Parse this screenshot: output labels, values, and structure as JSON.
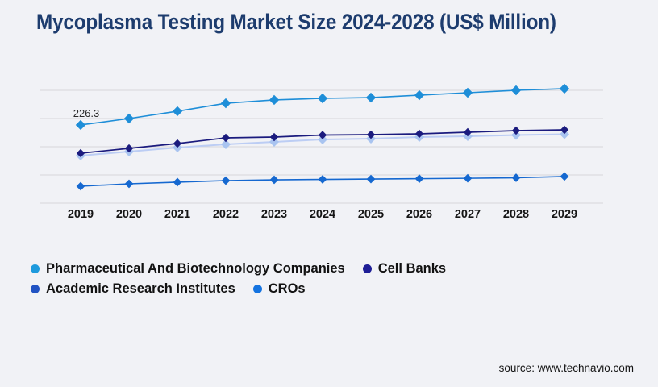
{
  "title": "Mycoplasma Testing Market Size 2024-2028 (US$ Million)",
  "source_text": "source: www.technavio.com",
  "colors": {
    "background": "#f1f2f6",
    "title": "#1d3c6e",
    "gridline": "#d7d7db",
    "axis_label": "#151515",
    "annotation_text": "#2a2a2a"
  },
  "chart_data": {
    "type": "line",
    "title": "Mycoplasma Testing Market Size 2024-2028 (US$ Million)",
    "x": [
      "2019",
      "2020",
      "2021",
      "2022",
      "2023",
      "2024",
      "2025",
      "2026",
      "2027",
      "2028",
      "2029"
    ],
    "series": [
      {
        "name": "Pharmaceutical And Biotechnology Companies",
        "color": "#1e8ed8",
        "legend_color": "#1e9add",
        "values": [
          226.3,
          237.7,
          250.6,
          264.8,
          270.6,
          273.4,
          274.8,
          279.1,
          283.4,
          287.7,
          290.6
        ]
      },
      {
        "name": "Cell Banks",
        "color": "#1b1b7e",
        "legend_color": "#1e1e96",
        "values": [
          176.3,
          184.8,
          193.4,
          203.4,
          204.8,
          208.4,
          209.1,
          210.6,
          213.4,
          216.3,
          217.7
        ]
      },
      {
        "name": "Academic Research Institutes",
        "color": "#bccdf4",
        "marker_color": "#a9c4f0",
        "legend_color": "#2153c3",
        "values": [
          172.0,
          179.1,
          186.3,
          192.0,
          196.3,
          200.6,
          202.0,
          204.8,
          206.3,
          208.4,
          209.9
        ]
      },
      {
        "name": "CROs",
        "color": "#1568d0",
        "legend_color": "#1473e0",
        "values": [
          117.7,
          122.0,
          124.9,
          127.7,
          129.1,
          129.8,
          130.4,
          131.1,
          131.8,
          132.7,
          135.0
        ]
      }
    ],
    "annotation": {
      "label": "226.3",
      "series_index": 0,
      "point_index": 0
    },
    "ylim": [
      87.7,
      294.0
    ],
    "xlabel": "",
    "ylabel": "",
    "grid": "horizontal, 5 unlabeled gridlines every 50 units (87.7 to 287.7)",
    "legend_position": "bottom-left",
    "marker": "diamond"
  }
}
